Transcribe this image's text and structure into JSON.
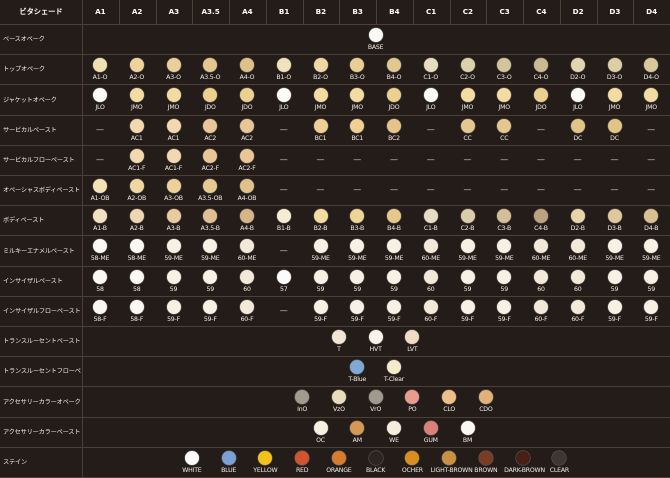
{
  "header": {
    "corner": "ビタシェード",
    "columns": [
      "A1",
      "A2",
      "A3",
      "A3.5",
      "A4",
      "B1",
      "B2",
      "B3",
      "B4",
      "C1",
      "C2",
      "C3",
      "C4",
      "D2",
      "D3",
      "D4"
    ]
  },
  "rows": [
    {
      "label": "ベースオペーク",
      "cells": [
        {
          "text": "BASE",
          "color": "#fbfaf6",
          "center": true
        }
      ]
    },
    {
      "label": "トップオペーク",
      "cells": [
        {
          "text": "A1-O",
          "color": "#f1e0b0"
        },
        {
          "text": "A2-O",
          "color": "#efd39a"
        },
        {
          "text": "A3-O",
          "color": "#ead098"
        },
        {
          "text": "A3.5-O",
          "color": "#e3c78c"
        },
        {
          "text": "A4-O",
          "color": "#dcc189"
        },
        {
          "text": "B1-O",
          "color": "#f0e2bb"
        },
        {
          "text": "B2-O",
          "color": "#efd8a3"
        },
        {
          "text": "B3-O",
          "color": "#e8cf96"
        },
        {
          "text": "B4-O",
          "color": "#e0c88f"
        },
        {
          "text": "C1-O",
          "color": "#e6ddbf"
        },
        {
          "text": "C2-O",
          "color": "#ddd1ab"
        },
        {
          "text": "C3-O",
          "color": "#d3c59b"
        },
        {
          "text": "C4-O",
          "color": "#c9ba92"
        },
        {
          "text": "D2-O",
          "color": "#e2d6b0"
        },
        {
          "text": "D3-O",
          "color": "#dccfa4"
        },
        {
          "text": "D4-O",
          "color": "#d8c99b"
        }
      ]
    },
    {
      "label": "ジャケットオペーク",
      "cells": [
        {
          "text": "JLO",
          "color": "#fdfcf9"
        },
        {
          "text": "JMO",
          "color": "#f3dca2"
        },
        {
          "text": "JMO",
          "color": "#f3dca2"
        },
        {
          "text": "JDO",
          "color": "#ecd090"
        },
        {
          "text": "JDO",
          "color": "#ecd090"
        },
        {
          "text": "JLO",
          "color": "#fdfcf9"
        },
        {
          "text": "JMO",
          "color": "#f3dca2"
        },
        {
          "text": "JMO",
          "color": "#f3dca2"
        },
        {
          "text": "JDO",
          "color": "#ecd090"
        },
        {
          "text": "JLO",
          "color": "#fdfcf9"
        },
        {
          "text": "JMO",
          "color": "#f3dca2"
        },
        {
          "text": "JMO",
          "color": "#f3dca2"
        },
        {
          "text": "JDO",
          "color": "#ecd090"
        },
        {
          "text": "JLO",
          "color": "#fdfcf9"
        },
        {
          "text": "JMO",
          "color": "#f3dca2"
        },
        {
          "text": "JMO",
          "color": "#f3dca2"
        }
      ]
    },
    {
      "label": "サービカルペースト",
      "cells": [
        {
          "text": "—",
          "dash": true
        },
        {
          "text": "AC1",
          "color": "#f3d7ae"
        },
        {
          "text": "AC1",
          "color": "#f3d7ae"
        },
        {
          "text": "AC2",
          "color": "#eac596"
        },
        {
          "text": "AC2",
          "color": "#eac596"
        },
        {
          "text": "—",
          "dash": true
        },
        {
          "text": "BC1",
          "color": "#f0cf94"
        },
        {
          "text": "BC1",
          "color": "#f0cf94"
        },
        {
          "text": "BC2",
          "color": "#e7c28b"
        },
        {
          "text": "—",
          "dash": true
        },
        {
          "text": "CC",
          "color": "#e5c790"
        },
        {
          "text": "CC",
          "color": "#e5c790"
        },
        {
          "text": "—",
          "dash": true
        },
        {
          "text": "DC",
          "color": "#e2c489"
        },
        {
          "text": "DC",
          "color": "#e2c489"
        },
        {
          "text": "—",
          "dash": true
        }
      ]
    },
    {
      "label": "サービカルフローペースト",
      "cells": [
        {
          "text": "—",
          "dash": true
        },
        {
          "text": "AC1-F",
          "color": "#f3d7ae"
        },
        {
          "text": "AC1-F",
          "color": "#f3d7ae"
        },
        {
          "text": "AC2-F",
          "color": "#eac596"
        },
        {
          "text": "AC2-F",
          "color": "#eac596"
        },
        {
          "text": "—",
          "dash": true
        },
        {
          "text": "—",
          "dash": true
        },
        {
          "text": "—",
          "dash": true
        },
        {
          "text": "—",
          "dash": true
        },
        {
          "text": "—",
          "dash": true
        },
        {
          "text": "—",
          "dash": true
        },
        {
          "text": "—",
          "dash": true
        },
        {
          "text": "—",
          "dash": true
        },
        {
          "text": "—",
          "dash": true
        },
        {
          "text": "—",
          "dash": true
        },
        {
          "text": "—",
          "dash": true
        }
      ]
    },
    {
      "label": "オペーシャスボディペースト",
      "cells": [
        {
          "text": "A1-OB",
          "color": "#f4e3b6"
        },
        {
          "text": "A2-OB",
          "color": "#f0d7a2"
        },
        {
          "text": "A3-OB",
          "color": "#ecd19a"
        },
        {
          "text": "A3.5-OB",
          "color": "#e6c98f"
        },
        {
          "text": "A4-OB",
          "color": "#dfc189"
        },
        {
          "text": "—",
          "dash": true
        },
        {
          "text": "—",
          "dash": true
        },
        {
          "text": "—",
          "dash": true
        },
        {
          "text": "—",
          "dash": true
        },
        {
          "text": "—",
          "dash": true
        },
        {
          "text": "—",
          "dash": true
        },
        {
          "text": "—",
          "dash": true
        },
        {
          "text": "—",
          "dash": true
        },
        {
          "text": "—",
          "dash": true
        },
        {
          "text": "—",
          "dash": true
        },
        {
          "text": "—",
          "dash": true
        }
      ]
    },
    {
      "label": "ボディペースト",
      "cells": [
        {
          "text": "A1-B",
          "color": "#f1e1c2"
        },
        {
          "text": "A2-B",
          "color": "#eed6b0"
        },
        {
          "text": "A3-B",
          "color": "#e8cb9f"
        },
        {
          "text": "A3.5-B",
          "color": "#e0bf92"
        },
        {
          "text": "A4-B",
          "color": "#d6b587"
        },
        {
          "text": "B1-B",
          "color": "#f6ecd3"
        },
        {
          "text": "B2-B",
          "color": "#f4dc9e"
        },
        {
          "text": "B3-B",
          "color": "#efd595"
        },
        {
          "text": "B4-B",
          "color": "#e5c88b"
        },
        {
          "text": "C1-B",
          "color": "#e5dcc3"
        },
        {
          "text": "C2-B",
          "color": "#dccdaa"
        },
        {
          "text": "C3-B",
          "color": "#d1bf9a"
        },
        {
          "text": "C4-B",
          "color": "#bca281"
        },
        {
          "text": "D2-B",
          "color": "#e6d4aa"
        },
        {
          "text": "D3-B",
          "color": "#dfc99c"
        },
        {
          "text": "D4-B",
          "color": "#d8c190"
        }
      ]
    },
    {
      "label": "ミルキーエナメルペースト",
      "cells": [
        {
          "text": "58-ME",
          "color": "#fbf8f3"
        },
        {
          "text": "58-ME",
          "color": "#fbf8f3"
        },
        {
          "text": "59-ME",
          "color": "#f7f1e5"
        },
        {
          "text": "59-ME",
          "color": "#f7f1e5"
        },
        {
          "text": "60-ME",
          "color": "#f2e9d8"
        },
        {
          "text": "—",
          "dash": true
        },
        {
          "text": "59-ME",
          "color": "#f7f1e5"
        },
        {
          "text": "59-ME",
          "color": "#f7f1e5"
        },
        {
          "text": "59-ME",
          "color": "#f7f1e5"
        },
        {
          "text": "60-ME",
          "color": "#f2e9d8"
        },
        {
          "text": "59-ME",
          "color": "#f7f1e5"
        },
        {
          "text": "59-ME",
          "color": "#f7f1e5"
        },
        {
          "text": "60-ME",
          "color": "#f2e9d8"
        },
        {
          "text": "60-ME",
          "color": "#f2e9d8"
        },
        {
          "text": "59-ME",
          "color": "#f7f1e5"
        },
        {
          "text": "59-ME",
          "color": "#f7f1e5"
        }
      ]
    },
    {
      "label": "インサイザルペースト",
      "cells": [
        {
          "text": "58",
          "color": "#fbf8f3"
        },
        {
          "text": "58",
          "color": "#fbf8f3"
        },
        {
          "text": "59",
          "color": "#f7f1e5"
        },
        {
          "text": "59",
          "color": "#f7f1e5"
        },
        {
          "text": "60",
          "color": "#f2e9d8"
        },
        {
          "text": "57",
          "color": "#fdfcfa"
        },
        {
          "text": "59",
          "color": "#f7f1e5"
        },
        {
          "text": "59",
          "color": "#f7f1e5"
        },
        {
          "text": "59",
          "color": "#f7f1e5"
        },
        {
          "text": "60",
          "color": "#f2e9d8"
        },
        {
          "text": "59",
          "color": "#f7f1e5"
        },
        {
          "text": "59",
          "color": "#f7f1e5"
        },
        {
          "text": "60",
          "color": "#f2e9d8"
        },
        {
          "text": "60",
          "color": "#f2e9d8"
        },
        {
          "text": "59",
          "color": "#f7f1e5"
        },
        {
          "text": "59",
          "color": "#f7f1e5"
        }
      ]
    },
    {
      "label": "インサイザルフローペースト",
      "cells": [
        {
          "text": "58-F",
          "color": "#fbf8f3"
        },
        {
          "text": "58-F",
          "color": "#fbf8f3"
        },
        {
          "text": "59-F",
          "color": "#f7f1e5"
        },
        {
          "text": "59-F",
          "color": "#f7f1e5"
        },
        {
          "text": "60-F",
          "color": "#f2e9d8"
        },
        {
          "text": "—",
          "dash": true
        },
        {
          "text": "59-F",
          "color": "#f7f1e5"
        },
        {
          "text": "59-F",
          "color": "#f7f1e5"
        },
        {
          "text": "59-F",
          "color": "#f7f1e5"
        },
        {
          "text": "60-F",
          "color": "#f2e9d8"
        },
        {
          "text": "59-F",
          "color": "#f7f1e5"
        },
        {
          "text": "59-F",
          "color": "#f7f1e5"
        },
        {
          "text": "60-F",
          "color": "#f2e9d8"
        },
        {
          "text": "60-F",
          "color": "#f2e9d8"
        },
        {
          "text": "59-F",
          "color": "#f7f1e5"
        },
        {
          "text": "59-F",
          "color": "#f7f1e5"
        }
      ]
    },
    {
      "label": "トランスルーセントペースト",
      "cells": [
        {
          "text": "T",
          "color": "#f1e6d3",
          "center": true
        },
        {
          "text": "HVT",
          "color": "#f7f3ea",
          "center": true
        },
        {
          "text": "LVT",
          "color": "#f0dcc6",
          "center": true
        }
      ]
    },
    {
      "label": "トランスルーセントフローペースト",
      "cells": [
        {
          "text": "T-Blue",
          "color": "#7fa9d4",
          "center": true
        },
        {
          "text": "T-Clear",
          "color": "#f5ebcb",
          "center": true
        }
      ]
    },
    {
      "label": "アクセサリーカラーオペーク",
      "cells": [
        {
          "text": "InO",
          "color": "#a19a8e",
          "center": true
        },
        {
          "text": "VzO",
          "color": "#e8dcbc",
          "center": true
        },
        {
          "text": "VrO",
          "color": "#a09a8e",
          "center": true
        },
        {
          "text": "PO",
          "color": "#e79c8e",
          "center": true
        },
        {
          "text": "CLO",
          "color": "#ebc089",
          "center": true
        },
        {
          "text": "CDO",
          "color": "#e0b27a",
          "center": true
        }
      ]
    },
    {
      "label": "アクセサリーカラーペースト",
      "cells": [
        {
          "text": "OC",
          "color": "#f7efdf",
          "center": true
        },
        {
          "text": "AM",
          "color": "#d69955",
          "center": true
        },
        {
          "text": "WE",
          "color": "#f6eddd",
          "center": true
        },
        {
          "text": "GUM",
          "color": "#d9807a",
          "center": true
        },
        {
          "text": "BM",
          "color": "#fbf7f1",
          "center": true
        }
      ]
    },
    {
      "label": "ステイン",
      "cells": [
        {
          "text": "WHITE",
          "color": "#ffffff",
          "center": true
        },
        {
          "text": "BLUE",
          "color": "#7aa0d8",
          "center": true
        },
        {
          "text": "YELLOW",
          "color": "#f2c21b",
          "center": true
        },
        {
          "text": "RED",
          "color": "#d2532e",
          "center": true
        },
        {
          "text": "ORANGE",
          "color": "#d87b2b",
          "center": true
        },
        {
          "text": "BLACK",
          "color": "#2c2421",
          "center": true
        },
        {
          "text": "OCHER",
          "color": "#d98e1e",
          "center": true
        },
        {
          "text": "LIGHT-BROWN",
          "color": "#c8903f",
          "center": true
        },
        {
          "text": "BROWN",
          "color": "#7a3c24",
          "center": true
        },
        {
          "text": "DARK-BROWN",
          "color": "#4a1f16",
          "center": true
        },
        {
          "text": "CLEAR",
          "color": "#3d3632",
          "center": true
        }
      ]
    }
  ]
}
